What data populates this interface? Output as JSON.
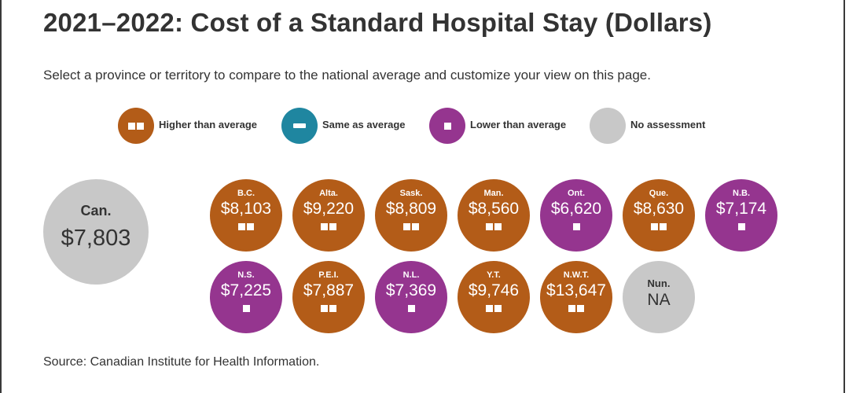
{
  "title": "2021–2022: Cost of a Standard Hospital Stay (Dollars)",
  "subtitle": "Select a province or territory to compare to the national average and customize your view on this page.",
  "source": "Source: Canadian Institute for Health Information.",
  "colors": {
    "higher": "#b35c18",
    "same": "#1f86a0",
    "lower": "#95358f",
    "none": "#c8c8c8"
  },
  "legend": [
    {
      "key": "higher",
      "label": "Higher than average",
      "indicator": "two-squares"
    },
    {
      "key": "same",
      "label": "Same as average",
      "indicator": "dash"
    },
    {
      "key": "lower",
      "label": "Lower than average",
      "indicator": "one-square"
    },
    {
      "key": "none",
      "label": "No assessment",
      "indicator": "none"
    }
  ],
  "chart_data": {
    "type": "table",
    "title": "2021–2022: Cost of a Standard Hospital Stay (Dollars)",
    "national": {
      "abbr": "Can.",
      "value": 7803,
      "display": "$7,803"
    },
    "jurisdictions": [
      {
        "abbr": "B.C.",
        "value": 8103,
        "display": "$8,103",
        "assessment": "higher"
      },
      {
        "abbr": "Alta.",
        "value": 9220,
        "display": "$9,220",
        "assessment": "higher"
      },
      {
        "abbr": "Sask.",
        "value": 8809,
        "display": "$8,809",
        "assessment": "higher"
      },
      {
        "abbr": "Man.",
        "value": 8560,
        "display": "$8,560",
        "assessment": "higher"
      },
      {
        "abbr": "Ont.",
        "value": 6620,
        "display": "$6,620",
        "assessment": "lower"
      },
      {
        "abbr": "Que.",
        "value": 8630,
        "display": "$8,630",
        "assessment": "higher"
      },
      {
        "abbr": "N.B.",
        "value": 7174,
        "display": "$7,174",
        "assessment": "lower"
      },
      {
        "abbr": "N.S.",
        "value": 7225,
        "display": "$7,225",
        "assessment": "lower"
      },
      {
        "abbr": "P.E.I.",
        "value": 7887,
        "display": "$7,887",
        "assessment": "higher"
      },
      {
        "abbr": "N.L.",
        "value": 7369,
        "display": "$7,369",
        "assessment": "lower"
      },
      {
        "abbr": "Y.T.",
        "value": 9746,
        "display": "$9,746",
        "assessment": "higher"
      },
      {
        "abbr": "N.W.T.",
        "value": 13647,
        "display": "$13,647",
        "assessment": "higher"
      },
      {
        "abbr": "Nun.",
        "value": null,
        "display": "NA",
        "assessment": "none"
      }
    ]
  }
}
